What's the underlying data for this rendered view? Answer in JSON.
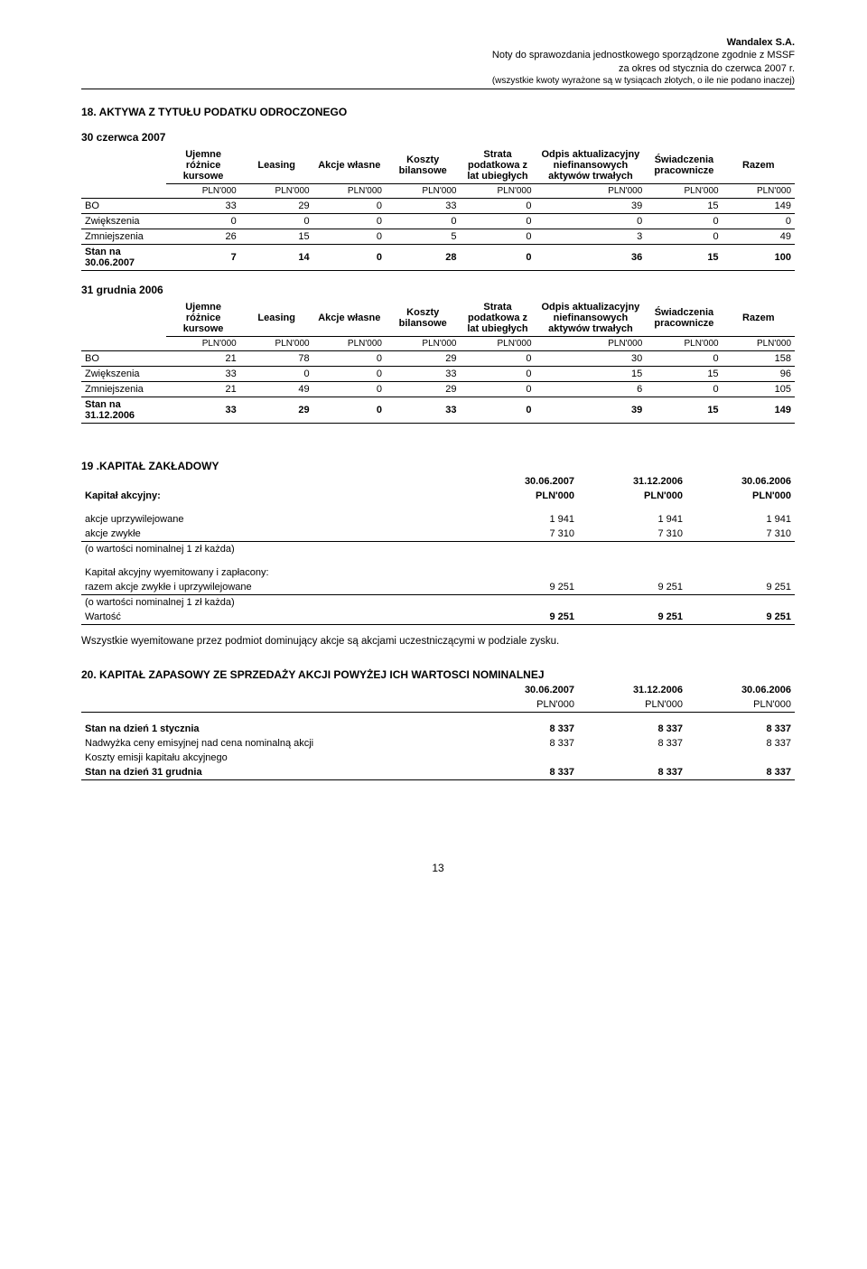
{
  "header": {
    "company": "Wandalex S.A.",
    "line2": "Noty do  sprawozdania jednostkowego sporządzone zgodnie z MSSF",
    "line3": "za okres od stycznia do czerwca 2007 r.",
    "line4": "(wszystkie kwoty wyrażone są w tysiącach złotych, o ile nie podano inaczej)"
  },
  "section18": {
    "title": "18. AKTYWA Z TYTUŁU PODATKU ODROCZONEGO",
    "periodA": "30 czerwca 2007",
    "periodB": "31 grudnia 2006",
    "cols": [
      "Ujemne różnice kursowe",
      "Leasing",
      "Akcje własne",
      "Koszty bilansowe",
      "Strata podatkowa z lat ubiegłych",
      "Odpis aktualizacyjny niefinansowych aktywów trwałych",
      "Świadczenia pracownicze",
      "Razem"
    ],
    "unit": "PLN'000",
    "tableA": {
      "rows": [
        {
          "label": "BO",
          "v": [
            "33",
            "29",
            "0",
            "33",
            "0",
            "39",
            "15",
            "149"
          ],
          "bold": false
        },
        {
          "label": "Zwiększenia",
          "v": [
            "0",
            "0",
            "0",
            "0",
            "0",
            "0",
            "0",
            "0"
          ],
          "bold": false
        },
        {
          "label": "Zmniejszenia",
          "v": [
            "26",
            "15",
            "0",
            "5",
            "0",
            "3",
            "0",
            "49"
          ],
          "bold": false
        },
        {
          "label": "Stan na 30.06.2007",
          "v": [
            "7",
            "14",
            "0",
            "28",
            "0",
            "36",
            "15",
            "100"
          ],
          "bold": true
        }
      ]
    },
    "tableB": {
      "rows": [
        {
          "label": "BO",
          "v": [
            "21",
            "78",
            "0",
            "29",
            "0",
            "30",
            "0",
            "158"
          ],
          "bold": false,
          "lastTop": true
        },
        {
          "label": "Zwiększenia",
          "v": [
            "33",
            "0",
            "0",
            "33",
            "0",
            "15",
            "15",
            "96"
          ],
          "bold": false
        },
        {
          "label": "Zmniejszenia",
          "v": [
            "21",
            "49",
            "0",
            "29",
            "0",
            "6",
            "0",
            "105"
          ],
          "bold": false
        },
        {
          "label": "Stan na 31.12.2006",
          "v": [
            "33",
            "29",
            "0",
            "33",
            "0",
            "39",
            "15",
            "149"
          ],
          "bold": true
        }
      ]
    }
  },
  "section19": {
    "title": "19 .KAPITAŁ ZAKŁADOWY",
    "dates": [
      "30.06.2007",
      "31.12.2006",
      "30.06.2006"
    ],
    "unit": "PLN'000",
    "kapLabel": "Kapitał akcyjny:",
    "rows1": [
      {
        "label": "akcje uprzywilejowane",
        "v": [
          "1 941",
          "1 941",
          "1 941"
        ]
      },
      {
        "label": "akcje zwykłe",
        "v": [
          "7 310",
          "7 310",
          "7 310"
        ]
      }
    ],
    "note1": "(o wartości nominalnej  1 zł każda)",
    "issued": "Kapitał akcyjny wyemitowany i zapłacony:",
    "row2": {
      "label": "razem akcje zwykłe i uprzywilejowane",
      "v": [
        "9 251",
        "9 251",
        "9 251"
      ]
    },
    "note2": "(o wartości nominalnej  1 zł każda)",
    "row3": {
      "label": "Wartość",
      "v": [
        "9 251",
        "9 251",
        "9 251"
      ]
    },
    "para": "Wszystkie wyemitowane przez podmiot dominujący akcje są akcjami uczestniczącymi w podziale zysku."
  },
  "section20": {
    "title": "20.  KAPITAŁ ZAPASOWY ZE SPRZEDAŻY AKCJI POWYŻEJ ICH WARTOSCI NOMINALNEJ",
    "dates": [
      "30.06.2007",
      "31.12.2006",
      "30.06.2006"
    ],
    "unit": "PLN'000",
    "rows": [
      {
        "label": "Stan na dzień 1 stycznia",
        "v": [
          "8 337",
          "8 337",
          "8 337"
        ],
        "bold": true
      },
      {
        "label": "Nadwyżka ceny emisyjnej nad cena nominalną akcji",
        "v": [
          "8 337",
          "8 337",
          "8 337"
        ],
        "bold": false
      },
      {
        "label": "Koszty emisji kapitału akcyjnego",
        "v": [
          "",
          "",
          ""
        ],
        "bold": false
      },
      {
        "label": "Stan na dzień 31 grudnia",
        "v": [
          "8 337",
          "8 337",
          "8 337"
        ],
        "bold": true,
        "underline": true
      }
    ]
  },
  "pageNumber": "13"
}
